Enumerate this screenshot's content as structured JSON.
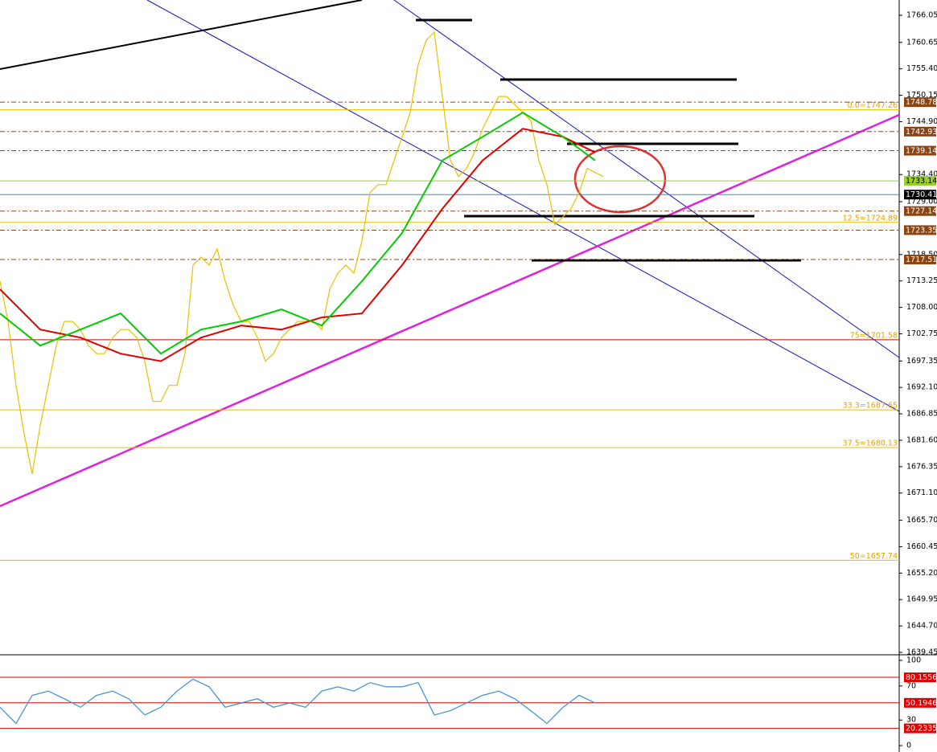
{
  "chart_data": [
    {
      "type": "line",
      "x": [
        0,
        1,
        2,
        3,
        4,
        5,
        6,
        7,
        8,
        9,
        10,
        11,
        12,
        13,
        14,
        15,
        16,
        17,
        18,
        19,
        20,
        21,
        22,
        23,
        24,
        25,
        26,
        27,
        28,
        29,
        30,
        31,
        32,
        33,
        34,
        35,
        36,
        37,
        38,
        39,
        40,
        41,
        42,
        43,
        44,
        45,
        46,
        47,
        48,
        49,
        50,
        51,
        52,
        53,
        54,
        55,
        56,
        57,
        58,
        59,
        60,
        61,
        62,
        63,
        64,
        65,
        66,
        67,
        68,
        69,
        70,
        71,
        72,
        73,
        74,
        75
      ],
      "series": [
        {
          "color": "#e8c000",
          "values": [
            1713.2,
            1705.2,
            1692.5,
            1682.9,
            1674.9,
            1684.5,
            1692.5,
            1700.4,
            1705.2,
            1705.2,
            1703.6,
            1700.4,
            1698.8,
            1698.8,
            1702.0,
            1703.6,
            1703.6,
            1702.0,
            1697.3,
            1689.3,
            1689.3,
            1692.5,
            1692.5,
            1698.8,
            1716.4,
            1718.0,
            1716.4,
            1719.6,
            1713.2,
            1708.4,
            1705.2,
            1705.2,
            1702.0,
            1697.3,
            1698.8,
            1702.0,
            1703.6,
            1705.2,
            1705.2,
            1705.2,
            1703.6,
            1711.6,
            1714.8,
            1716.4,
            1714.8,
            1721.2,
            1730.8,
            1732.4,
            1732.4,
            1737.2,
            1741.9,
            1746.7,
            1756.3,
            1761.1,
            1762.7,
            1749.9,
            1737.2,
            1734.0,
            1735.6,
            1738.8,
            1743.5,
            1746.7,
            1749.9,
            1749.9,
            1748.3,
            1746.7,
            1745.1,
            1737.2,
            1732.4,
            1724.4,
            1726.0,
            1727.6,
            1730.8,
            1735.6,
            1734.8,
            1734.0
          ]
        },
        {
          "color": "#e00000",
          "x": [
            0,
            5,
            10,
            15,
            20,
            25,
            30,
            35,
            40,
            45,
            50,
            55,
            60,
            65,
            70,
            74
          ],
          "values": [
            1711.6,
            1703.6,
            1702.0,
            1698.8,
            1697.3,
            1702.0,
            1704.4,
            1703.6,
            1706.0,
            1706.8,
            1716.4,
            1727.6,
            1737.2,
            1743.5,
            1741.9,
            1738.8
          ]
        },
        {
          "color": "#00cc00",
          "x": [
            0,
            5,
            10,
            15,
            20,
            25,
            30,
            35,
            40,
            45,
            50,
            55,
            60,
            65,
            70,
            74
          ],
          "values": [
            1706.8,
            1700.4,
            1703.6,
            1706.8,
            1698.8,
            1703.6,
            1705.2,
            1707.6,
            1704.4,
            1713.2,
            1722.8,
            1737.2,
            1741.9,
            1746.7,
            1741.9,
            1737.2
          ]
        }
      ],
      "xlim": [
        0,
        111.8
      ],
      "ylim": [
        1638.97,
        1769.08
      ],
      "yticks": [
        {
          "value": 1766.05,
          "label": "1766.05"
        },
        {
          "value": 1760.65,
          "label": "1760.65"
        },
        {
          "value": 1755.4,
          "label": "1755.40"
        },
        {
          "value": 1750.15,
          "label": "1750.15"
        },
        {
          "value": 1744.9,
          "label": "1744.90"
        },
        {
          "value": 1734.4,
          "label": "1734.40"
        },
        {
          "value": 1729,
          "label": "1729.00"
        },
        {
          "value": 1718.5,
          "label": "1718.50"
        },
        {
          "value": 1713.25,
          "label": "1713.25"
        },
        {
          "value": 1708,
          "label": "1708.00"
        },
        {
          "value": 1702.75,
          "label": "1702.75"
        },
        {
          "value": 1697.35,
          "label": "1697.35"
        },
        {
          "value": 1692.1,
          "label": "1692.10"
        },
        {
          "value": 1686.85,
          "label": "1686.85"
        },
        {
          "value": 1681.6,
          "label": "1681.60"
        },
        {
          "value": 1676.35,
          "label": "1676.35"
        },
        {
          "value": 1671.1,
          "label": "1671.10"
        },
        {
          "value": 1665.7,
          "label": "1665.70"
        },
        {
          "value": 1660.45,
          "label": "1660.45"
        },
        {
          "value": 1655.2,
          "label": "1655.20"
        },
        {
          "value": 1649.95,
          "label": "1649.95"
        },
        {
          "value": 1644.7,
          "label": "1644.70"
        },
        {
          "value": 1639.45,
          "label": "1639.45"
        }
      ],
      "levels": [
        {
          "value": 1748.78,
          "color": "#8b4513"
        },
        {
          "value": 1742.93,
          "color": "#8b4513"
        },
        {
          "value": 1739.14,
          "color": "#8b4513"
        },
        {
          "value": 1733.14,
          "color": "#9acd32"
        },
        {
          "value": 1730.41,
          "color": "#000000"
        },
        {
          "value": 1727.14,
          "color": "#8b4513"
        },
        {
          "value": 1723.35,
          "color": "#8b4513"
        },
        {
          "value": 1717.51,
          "color": "#8b4513"
        }
      ],
      "fib": [
        {
          "value": 1747.26,
          "label": "0.0=1747.26",
          "color": "#e8c000"
        },
        {
          "value": 1724.89,
          "label": "12.5=1724.89",
          "color": "#e8c000"
        },
        {
          "value": 1701.58,
          "label": "75=1701.58",
          "color": "#e00000"
        },
        {
          "value": 1687.65,
          "label": "33.3=1687.65",
          "color": "#e8c000"
        },
        {
          "value": 1680.13,
          "label": "37.5=1680.13",
          "color": "#e8c000"
        },
        {
          "value": 1657.74,
          "label": "50=1657.74",
          "color": "#e8c000"
        }
      ]
    },
    {
      "type": "line",
      "x": [
        0,
        2,
        4,
        6,
        8,
        10,
        12,
        14,
        16,
        18,
        20,
        22,
        24,
        26,
        28,
        30,
        32,
        34,
        36,
        38,
        40,
        42,
        44,
        46,
        48,
        50,
        52,
        54,
        56,
        58,
        60,
        62,
        64,
        66,
        68,
        70,
        72,
        74
      ],
      "series": [
        {
          "color": "#3a8fd0",
          "values": [
            45,
            26,
            59,
            64,
            55,
            45,
            59,
            64,
            55,
            36,
            45,
            64,
            78,
            69,
            45,
            50,
            55,
            45,
            50,
            45,
            64,
            69,
            64,
            74,
            69,
            69,
            74,
            36,
            41,
            50,
            59,
            64,
            55,
            41,
            26,
            45,
            59,
            50
          ]
        }
      ],
      "xlim": [
        0,
        111.8
      ],
      "ylim": [
        -7.5,
        104.7
      ],
      "yticks": [
        100,
        70,
        30,
        0
      ],
      "levels": [
        {
          "value": 80.1556,
          "color": "#e00000"
        },
        {
          "value": 50.1946,
          "color": "#e00000"
        },
        {
          "value": 20.2335,
          "color": "#e00000"
        }
      ]
    }
  ]
}
